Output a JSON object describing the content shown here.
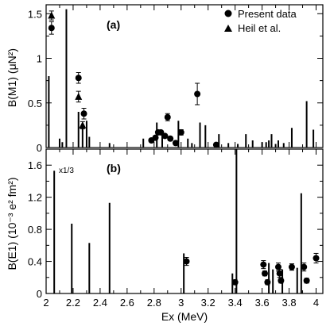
{
  "chart_data": [
    {
      "type": "bar",
      "panel_label": "(a)",
      "ylabel": "B(M1) (μN²)",
      "xlim": [
        2.0,
        4.05
      ],
      "ylim": [
        0,
        1.6
      ],
      "yticks": [
        0,
        0.5,
        1,
        1.5
      ],
      "ytick_labels": [
        "0",
        "0.5",
        "1",
        "1.5"
      ],
      "legend": {
        "placement": "top-right",
        "entries": [
          {
            "marker": "circle",
            "label": "Present data"
          },
          {
            "marker": "triangle",
            "label": "Heil et al."
          }
        ]
      },
      "bars": [
        {
          "x": 2.02,
          "y": 0.8
        },
        {
          "x": 2.1,
          "y": 0.1
        },
        {
          "x": 2.12,
          "y": 0.06
        },
        {
          "x": 2.15,
          "y": 1.55
        },
        {
          "x": 2.24,
          "y": 0.4
        },
        {
          "x": 2.27,
          "y": 0.27
        },
        {
          "x": 2.3,
          "y": 0.3
        },
        {
          "x": 2.32,
          "y": 0.12
        },
        {
          "x": 2.47,
          "y": 0.05
        },
        {
          "x": 2.72,
          "y": 0.1
        },
        {
          "x": 2.82,
          "y": 0.28
        },
        {
          "x": 2.86,
          "y": 0.18
        },
        {
          "x": 2.98,
          "y": 0.3
        },
        {
          "x": 3.05,
          "y": 0.1
        },
        {
          "x": 3.08,
          "y": 0.05
        },
        {
          "x": 3.14,
          "y": 0.28
        },
        {
          "x": 3.18,
          "y": 0.25
        },
        {
          "x": 3.28,
          "y": 0.15
        },
        {
          "x": 3.35,
          "y": 0.05
        },
        {
          "x": 3.42,
          "y": 0.04
        },
        {
          "x": 3.48,
          "y": 0.15
        },
        {
          "x": 3.53,
          "y": 0.08
        },
        {
          "x": 3.6,
          "y": 0.06
        },
        {
          "x": 3.63,
          "y": 0.06
        },
        {
          "x": 3.65,
          "y": 0.08
        },
        {
          "x": 3.67,
          "y": 0.15
        },
        {
          "x": 3.7,
          "y": 0.04
        },
        {
          "x": 3.72,
          "y": 0.08
        },
        {
          "x": 3.76,
          "y": 0.05
        },
        {
          "x": 3.82,
          "y": 0.22
        },
        {
          "x": 3.93,
          "y": 0.52
        },
        {
          "x": 3.98,
          "y": 0.2
        }
      ],
      "series": [
        {
          "marker": "circle",
          "points": [
            {
              "x": 2.04,
              "y": 1.34,
              "err": 0.07
            },
            {
              "x": 2.24,
              "y": 0.78,
              "err": 0.06
            },
            {
              "x": 2.28,
              "y": 0.38,
              "err": 0.06
            },
            {
              "x": 2.78,
              "y": 0.08,
              "err": 0.02
            },
            {
              "x": 2.81,
              "y": 0.11,
              "err": 0.02
            },
            {
              "x": 2.83,
              "y": 0.17,
              "err": 0.02
            },
            {
              "x": 2.85,
              "y": 0.17,
              "err": 0.02
            },
            {
              "x": 2.88,
              "y": 0.13,
              "err": 0.02
            },
            {
              "x": 2.9,
              "y": 0.34,
              "err": 0.04
            },
            {
              "x": 2.92,
              "y": 0.1,
              "err": 0.02
            },
            {
              "x": 2.96,
              "y": 0.05,
              "err": 0.02
            },
            {
              "x": 3.0,
              "y": 0.17,
              "err": 0.03
            },
            {
              "x": 3.12,
              "y": 0.6,
              "err": 0.12
            },
            {
              "x": 3.26,
              "y": 0.03,
              "err": 0.01
            }
          ]
        },
        {
          "marker": "triangle",
          "points": [
            {
              "x": 2.04,
              "y": 1.48,
              "err": 0.05
            },
            {
              "x": 2.24,
              "y": 0.57,
              "err": 0.06
            },
            {
              "x": 2.27,
              "y": 0.25,
              "err": 0.04
            }
          ]
        }
      ]
    },
    {
      "type": "bar",
      "panel_label": "(b)",
      "ylabel": "B(E1) (10⁻³ e² fm²)",
      "xlabel": "Ex (MeV)",
      "annotation": "x1/3",
      "xlim": [
        2.0,
        4.05
      ],
      "ylim": [
        0,
        1.8
      ],
      "xticks": [
        2,
        2.2,
        2.4,
        2.6,
        2.8,
        3,
        3.2,
        3.4,
        3.6,
        3.8,
        4
      ],
      "xtick_labels": [
        "2",
        "2.2",
        "2.4",
        "2.6",
        "2.8",
        "3",
        "3.2",
        "3.4",
        "3.6",
        "3.8",
        "4"
      ],
      "yticks": [
        0,
        0.4,
        0.8,
        1.2,
        1.6
      ],
      "ytick_labels": [
        "0",
        "0.4",
        "0.8",
        "1.2",
        "1.6"
      ],
      "bars": [
        {
          "x": 2.06,
          "y": 1.53
        },
        {
          "x": 2.19,
          "y": 0.87
        },
        {
          "x": 2.32,
          "y": 0.63
        },
        {
          "x": 2.47,
          "y": 1.13
        },
        {
          "x": 3.02,
          "y": 0.5
        },
        {
          "x": 3.38,
          "y": 0.25
        },
        {
          "x": 3.41,
          "y": 1.8
        },
        {
          "x": 3.65,
          "y": 0.38
        },
        {
          "x": 3.68,
          "y": 0.3
        },
        {
          "x": 3.75,
          "y": 0.3
        },
        {
          "x": 3.86,
          "y": 0.32
        },
        {
          "x": 3.89,
          "y": 1.25
        }
      ],
      "series": [
        {
          "marker": "circle",
          "points": [
            {
              "x": 3.04,
              "y": 0.4,
              "err": 0.05
            },
            {
              "x": 3.4,
              "y": 0.14,
              "err": 0.03
            },
            {
              "x": 3.61,
              "y": 0.36,
              "err": 0.05
            },
            {
              "x": 3.62,
              "y": 0.25,
              "err": 0.03
            },
            {
              "x": 3.64,
              "y": 0.14,
              "err": 0.03
            },
            {
              "x": 3.72,
              "y": 0.33,
              "err": 0.05
            },
            {
              "x": 3.73,
              "y": 0.25,
              "err": 0.05
            },
            {
              "x": 3.74,
              "y": 0.16,
              "err": 0.03
            },
            {
              "x": 3.82,
              "y": 0.33,
              "err": 0.04
            },
            {
              "x": 3.91,
              "y": 0.33,
              "err": 0.05
            },
            {
              "x": 3.93,
              "y": 0.16,
              "err": 0.03
            },
            {
              "x": 4.0,
              "y": 0.44,
              "err": 0.06
            }
          ]
        }
      ]
    }
  ]
}
